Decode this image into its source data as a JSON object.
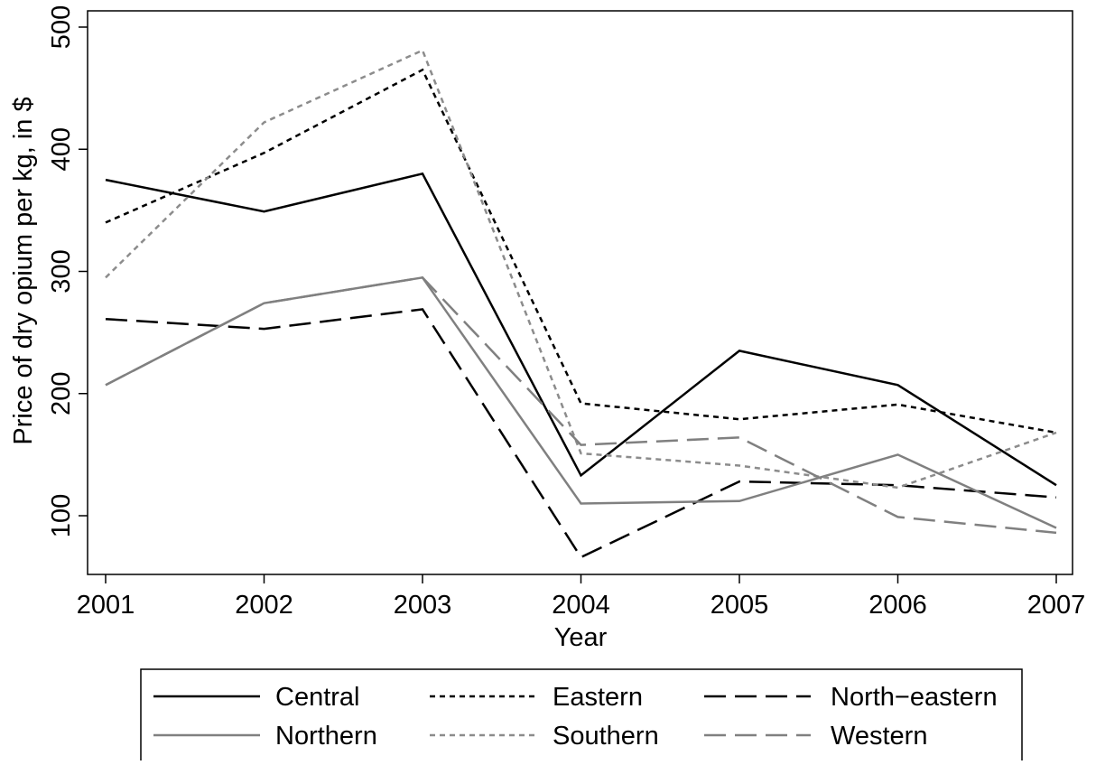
{
  "chart_data": {
    "type": "line",
    "title": "",
    "xlabel": "Year",
    "ylabel": "Price of dry opium per kg, in $",
    "x": [
      2001,
      2002,
      2003,
      2004,
      2005,
      2006,
      2007
    ],
    "xlim": [
      2001,
      2007
    ],
    "ylim": [
      50,
      500
    ],
    "yticks": [
      100,
      200,
      300,
      400,
      500
    ],
    "xticks": [
      2001,
      2002,
      2003,
      2004,
      2005,
      2006,
      2007
    ],
    "grid": false,
    "legend_placement": "bottom",
    "series": [
      {
        "name": "Central",
        "values": [
          375,
          349,
          380,
          133,
          235,
          207,
          125
        ],
        "color": "#000000",
        "dash": "solid"
      },
      {
        "name": "Eastern",
        "values": [
          340,
          397,
          465,
          192,
          179,
          191,
          168
        ],
        "color": "#000000",
        "dash": "short"
      },
      {
        "name": "North−eastern",
        "values": [
          261,
          253,
          269,
          66,
          128,
          125,
          115
        ],
        "color": "#000000",
        "dash": "long"
      },
      {
        "name": "Northern",
        "values": [
          207,
          274,
          295,
          110,
          112,
          150,
          90
        ],
        "color": "#808080",
        "dash": "solid"
      },
      {
        "name": "Southern",
        "values": [
          295,
          422,
          481,
          151,
          141,
          123,
          168
        ],
        "color": "#8c8c8c",
        "dash": "short"
      },
      {
        "name": "Western",
        "values": [
          207,
          274,
          295,
          158,
          164,
          99,
          86
        ],
        "color": "#808080",
        "dash": "long"
      }
    ]
  }
}
